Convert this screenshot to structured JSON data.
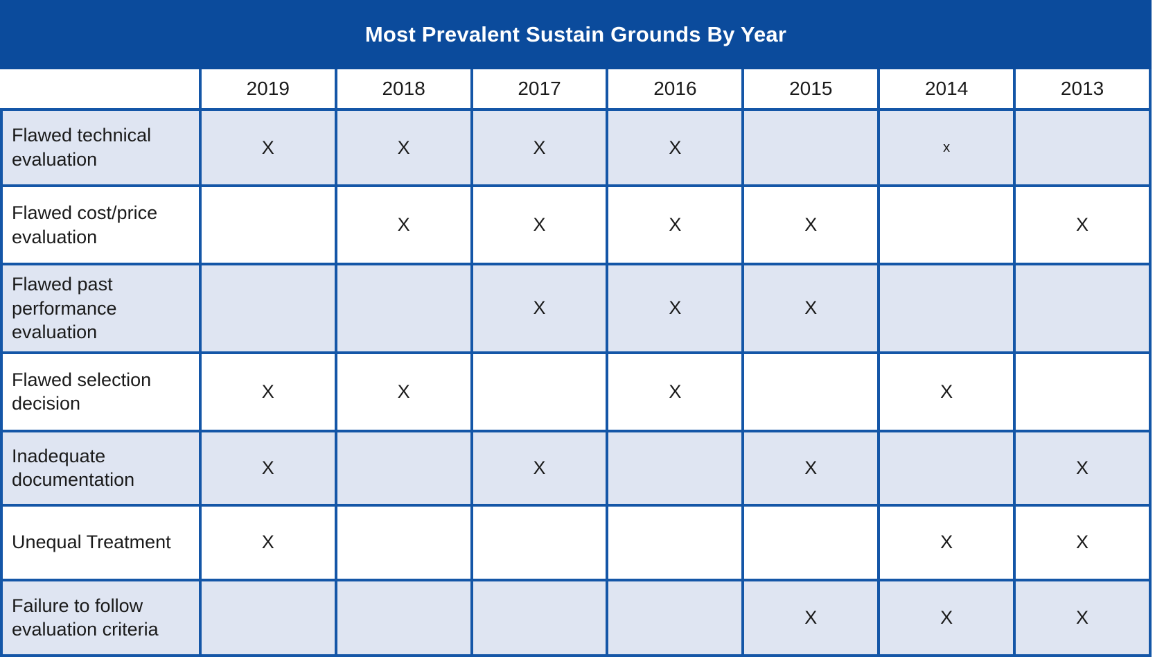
{
  "title": "Most Prevalent Sustain Grounds By Year",
  "colors": {
    "title_bar_bg": "#0b4b9c",
    "title_text": "#ffffff",
    "grid_border": "#1456a7",
    "shaded_row_bg": "#dfe5f2",
    "plain_row_bg": "#ffffff",
    "cell_text": "#1a1a1a"
  },
  "chart_data": {
    "type": "table",
    "title": "Most Prevalent Sustain Grounds By Year",
    "columns": [
      "2019",
      "2018",
      "2017",
      "2016",
      "2015",
      "2014",
      "2013"
    ],
    "rows": [
      {
        "label": "Flawed technical evaluation",
        "marks": [
          "X",
          "X",
          "X",
          "X",
          "",
          "x",
          ""
        ]
      },
      {
        "label": "Flawed cost/price evaluation",
        "marks": [
          "",
          "X",
          "X",
          "X",
          "X",
          "",
          "X"
        ]
      },
      {
        "label": "Flawed past performance evaluation",
        "marks": [
          "",
          "",
          "X",
          "X",
          "X",
          "",
          ""
        ]
      },
      {
        "label": "Flawed selection decision",
        "marks": [
          "X",
          "X",
          "",
          "X",
          "",
          "X",
          ""
        ]
      },
      {
        "label": "Inadequate documentation",
        "marks": [
          "X",
          "",
          "X",
          "",
          "X",
          "",
          "X"
        ]
      },
      {
        "label": "Unequal Treatment",
        "marks": [
          "X",
          "",
          "",
          "",
          "",
          "X",
          "X"
        ]
      },
      {
        "label": "Failure to follow evaluation criteria",
        "marks": [
          "",
          "",
          "",
          "",
          "X",
          "X",
          "X"
        ]
      }
    ],
    "layout": {
      "shaded_row_indexes": [
        0,
        2,
        4,
        6
      ],
      "legend": "none",
      "grid": "on"
    }
  }
}
